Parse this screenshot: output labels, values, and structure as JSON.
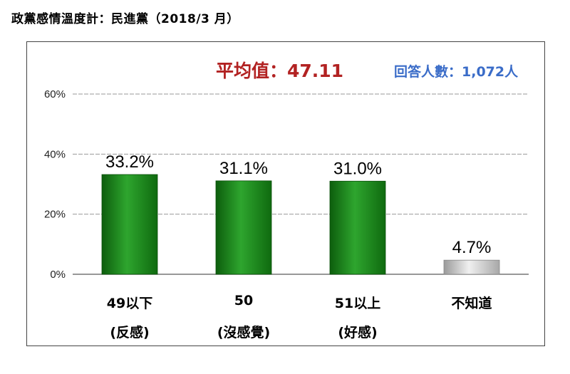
{
  "page_title": "政黨感情溫度計：民進黨（2018/3 月）",
  "average_label": "平均值：47.11",
  "respondents_label": "回答人數：1,072人",
  "chart_data": {
    "type": "bar",
    "categories": [
      "49以下 (反感)",
      "50 (沒感覺)",
      "51以上 (好感)",
      "不知道"
    ],
    "category_lines": [
      [
        "49以下",
        "(反感)"
      ],
      [
        "50",
        "(沒感覺)"
      ],
      [
        "51以上",
        "(好感)"
      ],
      [
        "不知道",
        ""
      ]
    ],
    "values": [
      33.2,
      31.1,
      31.0,
      4.7
    ],
    "value_labels": [
      "33.2%",
      "31.1%",
      "31.0%",
      "4.7%"
    ],
    "yticks": [
      "0%",
      "20%",
      "40%",
      "60%"
    ],
    "ylim": [
      0,
      60
    ],
    "grid": true,
    "colors": {
      "main": "#1e8a1e",
      "unknown": "#c8c8c8"
    },
    "title": "",
    "xlabel": "",
    "ylabel": ""
  }
}
